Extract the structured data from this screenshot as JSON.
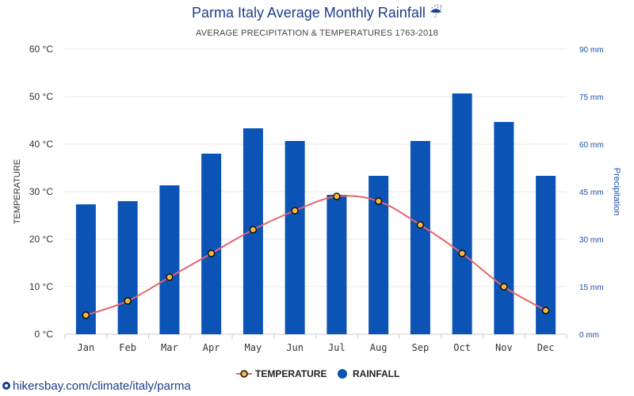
{
  "header": {
    "title": "Parma Italy Average Monthly Rainfall",
    "title_icon": "umbrella-rain-icon",
    "subtitle": "AVERAGE PRECIPITATION & TEMPERATURES 1763-2018"
  },
  "footer": {
    "source_text": "hikersbay.com/climate/italy/parma",
    "source_icon": "location-pin-icon"
  },
  "chart_data": {
    "type": "bar",
    "categories": [
      "Jan",
      "Feb",
      "Mar",
      "Apr",
      "May",
      "Jun",
      "Jul",
      "Aug",
      "Sep",
      "Oct",
      "Nov",
      "Dec"
    ],
    "series": [
      {
        "name": "TEMPERATURE",
        "type": "line",
        "axis": "left",
        "color": "#e8636b",
        "marker_color": "#f5b942",
        "values": [
          4,
          7,
          12,
          17,
          22,
          26,
          29,
          28,
          23,
          17,
          10,
          5
        ]
      },
      {
        "name": "RAINFALL",
        "type": "bar",
        "axis": "right",
        "color": "#0b53b4",
        "values": [
          41,
          42,
          47,
          57,
          65,
          61,
          44,
          50,
          61,
          76,
          67,
          50
        ]
      }
    ],
    "left_axis": {
      "title": "TEMPERATURE",
      "range": [
        0,
        60
      ],
      "ticks": [
        "0 °C",
        "10 °C",
        "20 °C",
        "30 °C",
        "40 °C",
        "50 °C",
        "60 °C"
      ]
    },
    "right_axis": {
      "title": "Precipitation",
      "range": [
        0,
        90
      ],
      "ticks": [
        "0 mm",
        "15 mm",
        "30 mm",
        "45 mm",
        "60 mm",
        "75 mm",
        "90 mm"
      ]
    },
    "legend": {
      "placement": "bottom-center",
      "items": [
        "TEMPERATURE",
        "RAINFALL"
      ]
    },
    "grid": true
  }
}
